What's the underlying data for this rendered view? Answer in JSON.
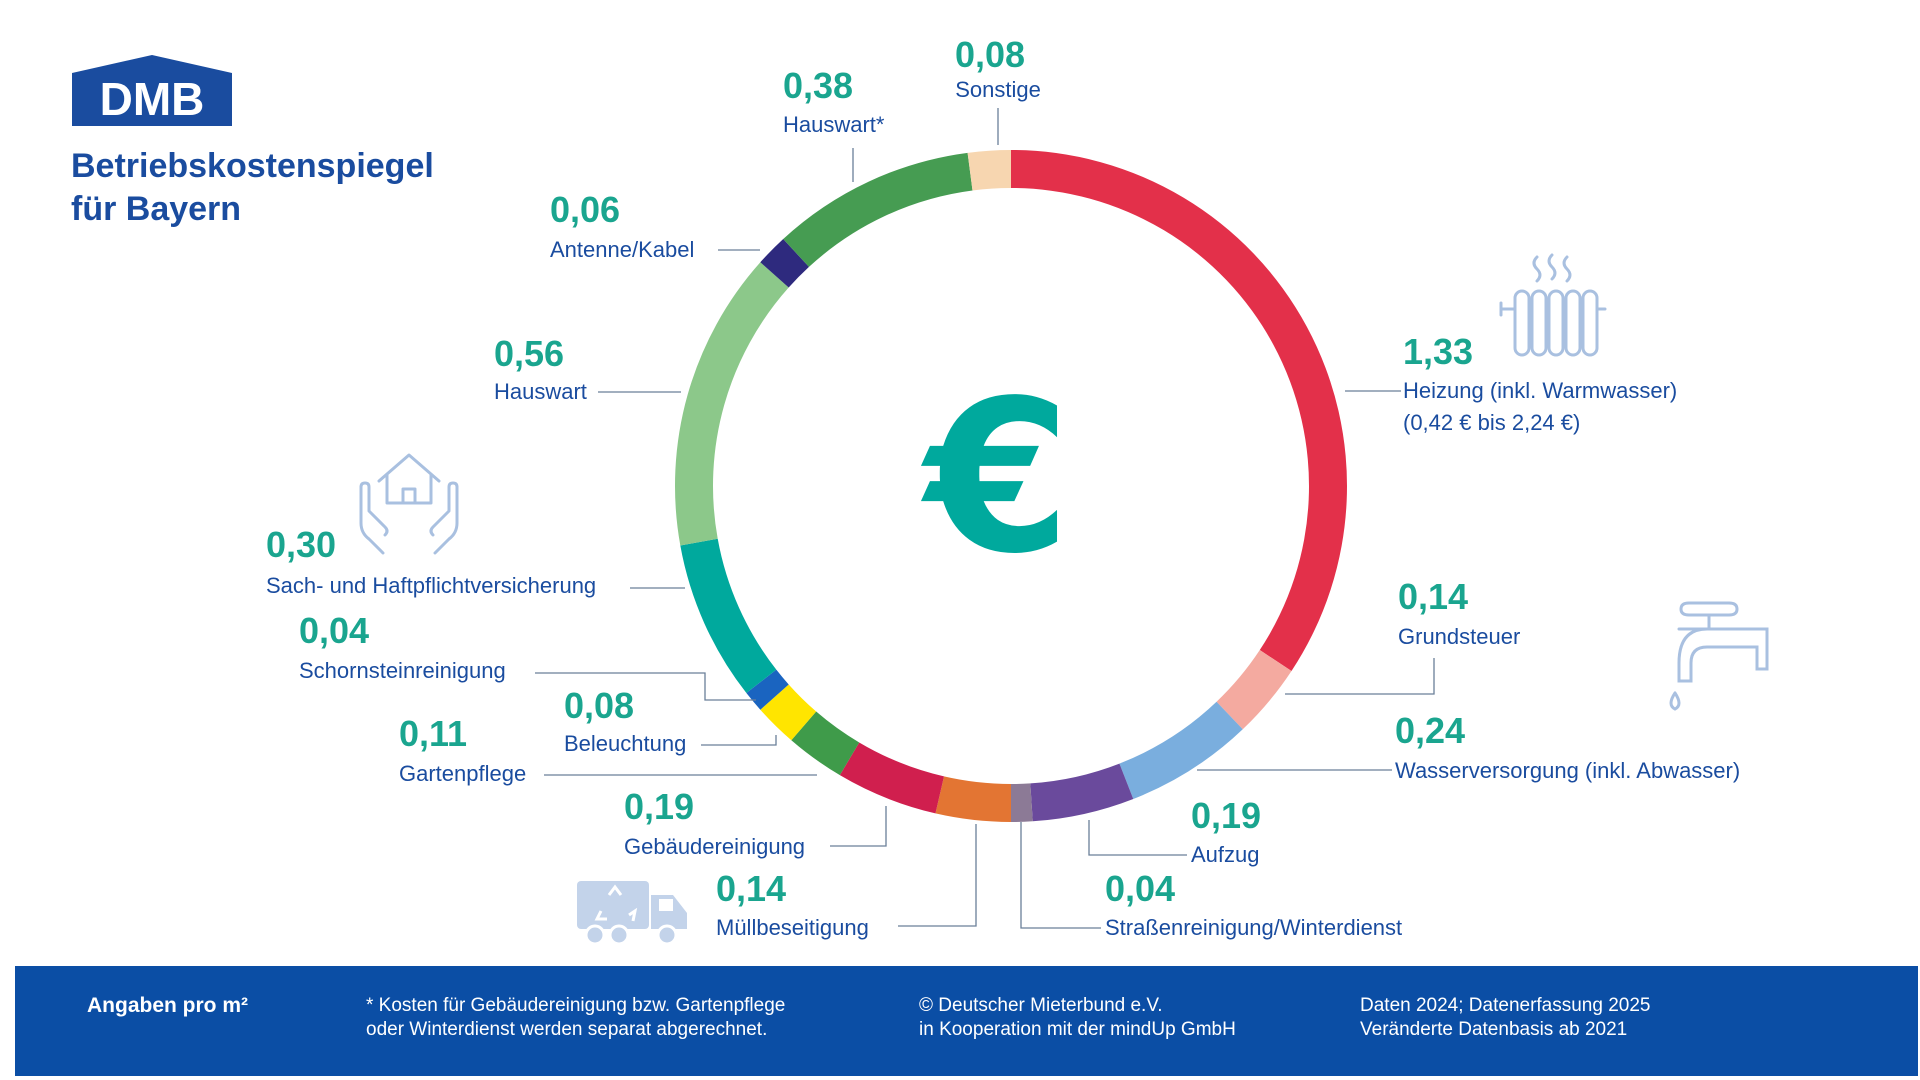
{
  "header": {
    "logo_text": "DMB",
    "title_line1": "Betriebskostenspiegel",
    "title_line2": "für Bayern"
  },
  "center_symbol": "€",
  "icons": [
    "radiator-icon",
    "water-tap-icon",
    "house-in-hands-icon",
    "garbage-truck-icon"
  ],
  "chart_data": {
    "type": "donut",
    "unit": "€ pro m²",
    "segments": [
      {
        "label": "Heizung (inkl. Warmwasser)",
        "label_line2": "(0,42 € bis 2,24 €)",
        "value": 1.33,
        "value_text": "1,33",
        "color": "#e3304a"
      },
      {
        "label": "Grundsteuer",
        "value": 0.14,
        "value_text": "0,14",
        "color": "#f4aaa0"
      },
      {
        "label": "Wasserversorgung (inkl. Abwasser)",
        "value": 0.24,
        "value_text": "0,24",
        "color": "#7aaede"
      },
      {
        "label": "Aufzug",
        "value": 0.19,
        "value_text": "0,19",
        "color": "#6a4a9c"
      },
      {
        "label": "Straßenreinigung/Winterdienst",
        "value": 0.04,
        "value_text": "0,04",
        "color": "#8c7a96"
      },
      {
        "label": "Müllbeseitigung",
        "value": 0.14,
        "value_text": "0,14",
        "color": "#e37533"
      },
      {
        "label": "Gebäudereinigung",
        "value": 0.19,
        "value_text": "0,19",
        "color": "#d01f4e"
      },
      {
        "label": "Gartenpflege",
        "value": 0.11,
        "value_text": "0,11",
        "color": "#3f9b4a"
      },
      {
        "label": "Beleuchtung",
        "value": 0.08,
        "value_text": "0,08",
        "color": "#ffe500"
      },
      {
        "label": "Schornsteinreinigung",
        "value": 0.04,
        "value_text": "0,04",
        "color": "#1a64c0"
      },
      {
        "label": "Sach- und Haftpflichtversicherung",
        "value": 0.3,
        "value_text": "0,30",
        "color": "#00a99d"
      },
      {
        "label": "Hauswart",
        "value": 0.56,
        "value_text": "0,56",
        "color": "#8cc88a"
      },
      {
        "label": "Antenne/Kabel",
        "value": 0.06,
        "value_text": "0,06",
        "color": "#2e2a7e"
      },
      {
        "label": "Hauswart*",
        "value": 0.38,
        "value_text": "0,38",
        "color": "#469c52"
      },
      {
        "label": "Sonstige",
        "value": 0.08,
        "value_text": "0,08",
        "color": "#f7d6b0"
      }
    ]
  },
  "footer": {
    "units": "Angaben pro m²",
    "note_line1": "* Kosten für Gebäudereinigung bzw. Gartenpflege",
    "note_line2": "oder Winterdienst werden separat abgerechnet.",
    "copyright_line1": "© Deutscher Mieterbund e.V.",
    "copyright_line2": "in Kooperation mit der mindUp GmbH",
    "data_line1": "Daten 2024; Datenerfassung 2025",
    "data_line2": "Veränderte Datenbasis ab 2021"
  }
}
